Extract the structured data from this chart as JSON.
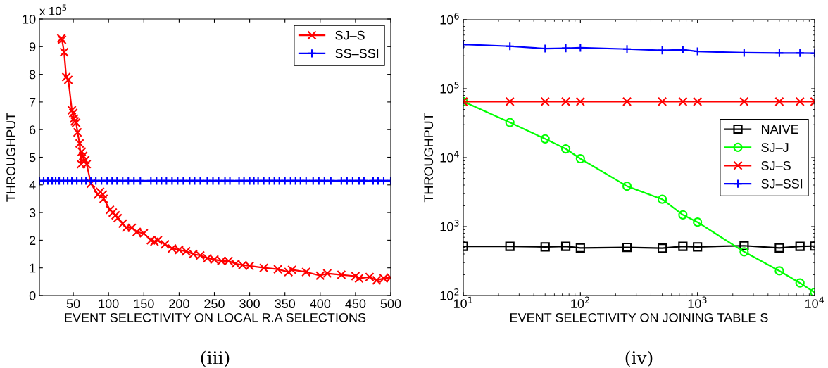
{
  "chart_data": [
    {
      "type": "line",
      "xlabel": "EVENT SELECTIVITY ON LOCAL R.A SELECTIONS",
      "ylabel": "THROUGHPUT",
      "annotations": [
        "x 10$^{5}$",
        "(iii)"
      ],
      "xlim": [
        2,
        500
      ],
      "xticks": [
        50,
        100,
        150,
        200,
        250,
        300,
        350,
        400,
        450,
        500
      ],
      "ylim": [
        0,
        10
      ],
      "yticks": [
        0,
        1,
        2,
        3,
        4,
        5,
        6,
        7,
        8,
        9,
        10
      ],
      "legend": "top right",
      "grid": false,
      "series": [
        {
          "name": "SJ–S",
          "color": "#ff0000",
          "marker": "cross",
          "x": [
            33,
            34,
            37,
            40,
            43,
            48,
            50,
            51,
            52,
            54,
            56,
            59,
            61,
            62,
            64,
            65,
            67,
            69,
            75,
            85,
            88,
            92,
            93,
            102,
            106,
            110,
            113,
            120,
            125,
            133,
            140,
            150,
            160,
            165,
            170,
            180,
            190,
            200,
            210,
            220,
            230,
            240,
            250,
            260,
            270,
            280,
            290,
            300,
            320,
            340,
            355,
            360,
            380,
            400,
            410,
            430,
            450,
            455,
            470,
            480,
            490,
            500
          ],
          "values": [
            9.3,
            9.25,
            8.8,
            7.9,
            7.8,
            6.7,
            6.6,
            6.4,
            6.3,
            6.25,
            5.9,
            5.5,
            4.75,
            5.2,
            5.05,
            4.85,
            4.9,
            4.75,
            4.05,
            3.65,
            3.75,
            3.65,
            3.5,
            3.1,
            3.0,
            2.9,
            2.8,
            2.6,
            2.45,
            2.45,
            2.3,
            2.25,
            2.0,
            1.95,
            2.0,
            1.85,
            1.7,
            1.65,
            1.6,
            1.5,
            1.45,
            1.35,
            1.3,
            1.25,
            1.25,
            1.15,
            1.1,
            1.07,
            1.0,
            0.95,
            0.85,
            0.93,
            0.85,
            0.72,
            0.8,
            0.75,
            0.7,
            0.62,
            0.67,
            0.55,
            0.62,
            0.65
          ]
        },
        {
          "name": "SS–SSI",
          "color": "#0000ff",
          "marker": "plus",
          "x": [
            2,
            8,
            14,
            20,
            25,
            30,
            36,
            42,
            48,
            55,
            62,
            68,
            75,
            82,
            90,
            98,
            105,
            112,
            120,
            128,
            136,
            145,
            160,
            168,
            175,
            182,
            190,
            198,
            206,
            215,
            222,
            230,
            240,
            248,
            256,
            265,
            272,
            285,
            292,
            300,
            306,
            312,
            320,
            328,
            335,
            342,
            350,
            358,
            365,
            372,
            380,
            390,
            398,
            406,
            415,
            430,
            438,
            446,
            455,
            462,
            475,
            482,
            490,
            500
          ],
          "values": [
            4.15,
            4.15,
            4.15,
            4.15,
            4.15,
            4.15,
            4.15,
            4.15,
            4.15,
            4.15,
            4.15,
            4.15,
            4.15,
            4.15,
            4.15,
            4.15,
            4.15,
            4.15,
            4.15,
            4.15,
            4.15,
            4.15,
            4.15,
            4.15,
            4.15,
            4.15,
            4.15,
            4.15,
            4.15,
            4.15,
            4.15,
            4.15,
            4.15,
            4.15,
            4.15,
            4.15,
            4.15,
            4.15,
            4.15,
            4.15,
            4.15,
            4.15,
            4.15,
            4.15,
            4.15,
            4.15,
            4.15,
            4.15,
            4.15,
            4.15,
            4.15,
            4.15,
            4.15,
            4.15,
            4.15,
            4.15,
            4.15,
            4.15,
            4.15,
            4.15,
            4.15,
            4.15,
            4.15,
            4.15
          ]
        }
      ]
    },
    {
      "type": "line",
      "xlabel": "EVENT SELECTIVITY ON JOINING TABLE S",
      "ylabel": "THROUGHPUT",
      "annotations": [
        "(iv)"
      ],
      "log": "xy",
      "xlim": [
        10,
        10000
      ],
      "xticks": [
        {
          "value": 10,
          "label": "10$^{1}$"
        },
        {
          "value": 100,
          "label": "10$^{2}$"
        },
        {
          "value": 1000,
          "label": "10$^{3}$"
        },
        {
          "value": 10000,
          "label": "10$^{4}$"
        }
      ],
      "ylim": [
        100,
        1000000
      ],
      "yticks": [
        {
          "value": 100,
          "label": "10$^{2}$"
        },
        {
          "value": 1000,
          "label": "10$^{3}$"
        },
        {
          "value": 10000,
          "label": "10$^{4}$"
        },
        {
          "value": 100000,
          "label": "10$^{5}$"
        },
        {
          "value": 1000000,
          "label": "10$^{6}$"
        }
      ],
      "legend": "center right",
      "grid": false,
      "x": [
        10,
        25,
        50,
        75,
        100,
        250,
        500,
        750,
        1000,
        2500,
        5000,
        7500,
        10000
      ],
      "series": [
        {
          "name": "NAIVE",
          "color": "#000000",
          "marker": "square",
          "values": [
            517,
            517,
            508,
            517,
            490,
            499,
            486,
            517,
            508,
            527,
            490,
            517,
            521
          ]
        },
        {
          "name": "SJ–J",
          "color": "#00ff00",
          "marker": "circle",
          "values": [
            65000,
            32300,
            18700,
            13400,
            9660,
            3850,
            2490,
            1480,
            1160,
            431,
            228,
            152,
            111
          ]
        },
        {
          "name": "SJ–S",
          "color": "#ff0000",
          "marker": "cross",
          "values": [
            65000,
            65000,
            65000,
            65000,
            65000,
            65000,
            65000,
            65000,
            65000,
            65000,
            65000,
            65000,
            65000
          ]
        },
        {
          "name": "SJ–SSI",
          "color": "#0000ff",
          "marker": "plus",
          "values": [
            438000,
            412000,
            381000,
            385000,
            391000,
            375000,
            359000,
            368000,
            347000,
            332000,
            329000,
            329000,
            326000
          ]
        }
      ]
    }
  ]
}
